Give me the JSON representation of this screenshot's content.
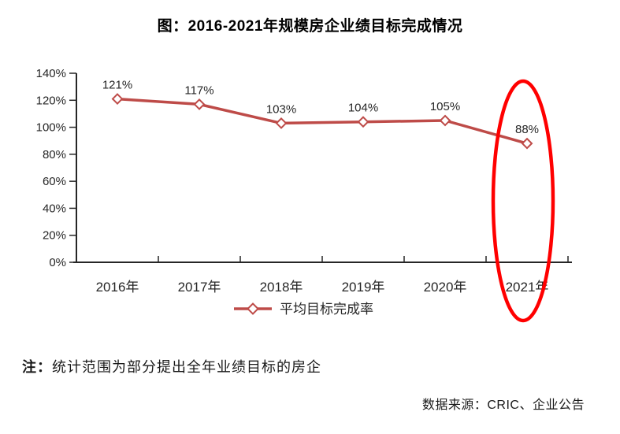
{
  "title": "图：2016-2021年规模房企业绩目标完成情况",
  "chart_data": {
    "type": "line",
    "title": "图：2016-2021年规模房企业绩目标完成情况",
    "categories": [
      "2016年",
      "2017年",
      "2018年",
      "2019年",
      "2020年",
      "2021年"
    ],
    "series": [
      {
        "name": "平均目标完成率",
        "values": [
          121,
          117,
          103,
          104,
          105,
          88
        ]
      }
    ],
    "data_labels": [
      "121%",
      "117%",
      "103%",
      "104%",
      "105%",
      "88%"
    ],
    "y_ticks": [
      "0%",
      "20%",
      "40%",
      "60%",
      "80%",
      "100%",
      "120%",
      "140%"
    ],
    "ylim": [
      0,
      140
    ],
    "y_step": 20,
    "grid": false,
    "legend_position": "bottom-center",
    "marker": "diamond",
    "annotation": "2021年 data point (88%) circled with a red ellipse"
  },
  "note": {
    "prefix": "注：",
    "text": "统计范围为部分提出全年业绩目标的房企"
  },
  "source": "数据来源：CRIC、企业公告",
  "colors": {
    "series_line": "#BE4B48",
    "marker_fill": "#FFFFFF",
    "highlight_ellipse": "#FF0000",
    "axis": "#262626",
    "text": "#262626",
    "title_text": "#000000",
    "background": "#FFFFFF"
  }
}
